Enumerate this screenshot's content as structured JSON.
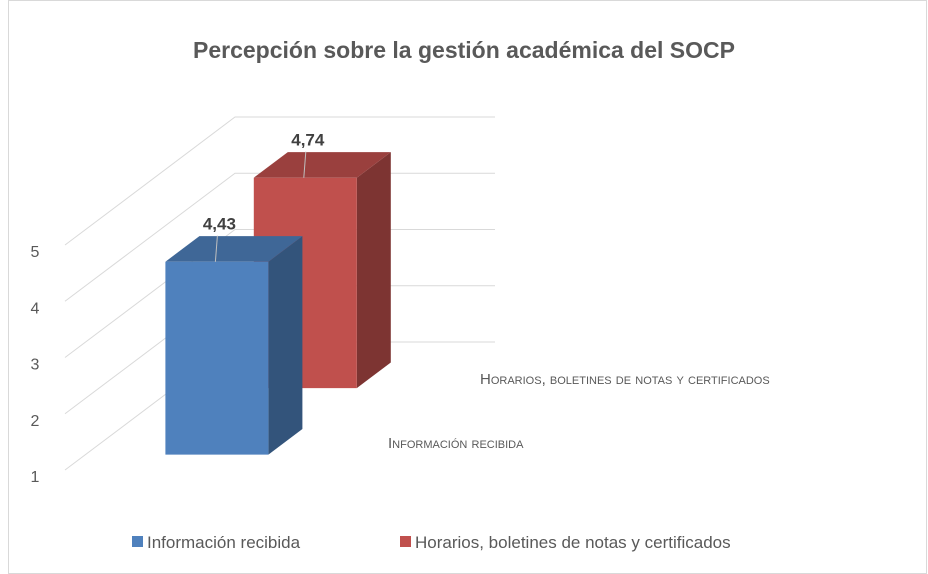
{
  "chart_data": {
    "type": "bar",
    "title": "Percepción sobre la gestión académica del SOCP",
    "series": [
      {
        "name": "Información recibida",
        "color": "#4f81bd",
        "values": [
          4.43
        ],
        "value_labels": [
          "4,43"
        ]
      },
      {
        "name": "Horarios, boletines de notas y certificados",
        "color": "#c0504d",
        "values": [
          4.74
        ],
        "value_labels": [
          "4,74"
        ]
      }
    ],
    "ylim": [
      1,
      5
    ],
    "yticks": [
      1,
      2,
      3,
      4,
      5
    ],
    "grid": true,
    "legend": "bottom"
  }
}
